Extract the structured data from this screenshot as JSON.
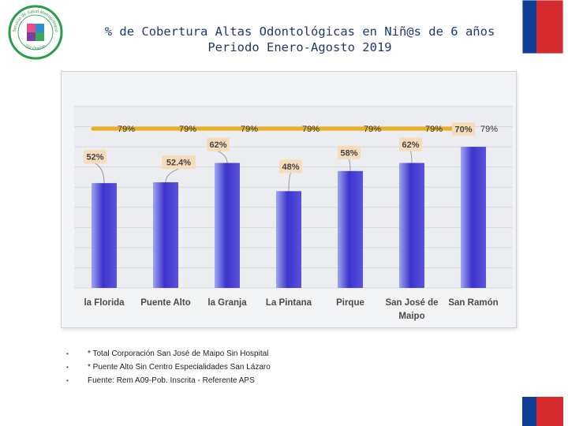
{
  "title": {
    "line1": "% de Cobertura Altas Odontológicas en Niñ@s de 6 años",
    "line2": "Periodo Enero-Agosto 2019"
  },
  "colors": {
    "bar_light": "#9ea6f0",
    "bar_dark": "#3c34cc",
    "target_line": "#e8b021",
    "label_bg": "#f6dcb9",
    "title": "#1f3a6b",
    "flag_blue": "#0e3f94",
    "flag_red": "#d52b2e"
  },
  "chart_data": {
    "type": "bar",
    "categories": [
      "la Florida",
      "Puente Alto",
      "la Granja",
      "La Pintana",
      "Pirque",
      "San José de Maipo",
      "San Ramón"
    ],
    "category_labels": [
      "la Florida",
      "Puente Alto",
      "la Granja",
      "La Pintana",
      "Pirque",
      "San José de\nMaipo",
      "San Ramón"
    ],
    "series": [
      {
        "values": [
          52,
          52.4,
          62,
          48,
          58,
          62,
          70
        ]
      },
      {
        "values": [
          79,
          79,
          79,
          79,
          79,
          79,
          79
        ]
      }
    ],
    "bar_labels": [
      "52%",
      "52.4%",
      "62%",
      "48%",
      "58%",
      "62%",
      "70%"
    ],
    "target_labels": [
      "79%",
      "79%",
      "79%",
      "79%",
      "79%",
      "79%",
      "79%"
    ],
    "ylim": [
      0,
      90
    ],
    "grid": true,
    "legend": "none"
  },
  "notes": [
    "* Total Corporación San José de Maipo Sin Hospital",
    "* Puente Alto Sin Centro Especialidades San Lázaro",
    "Fuente: Rem A09-Pob. Inscrita - Referente APS"
  ],
  "logo": {
    "text_top": "Servicio de Salud Metropolitano",
    "text_bottom": "Sur Oriente"
  }
}
